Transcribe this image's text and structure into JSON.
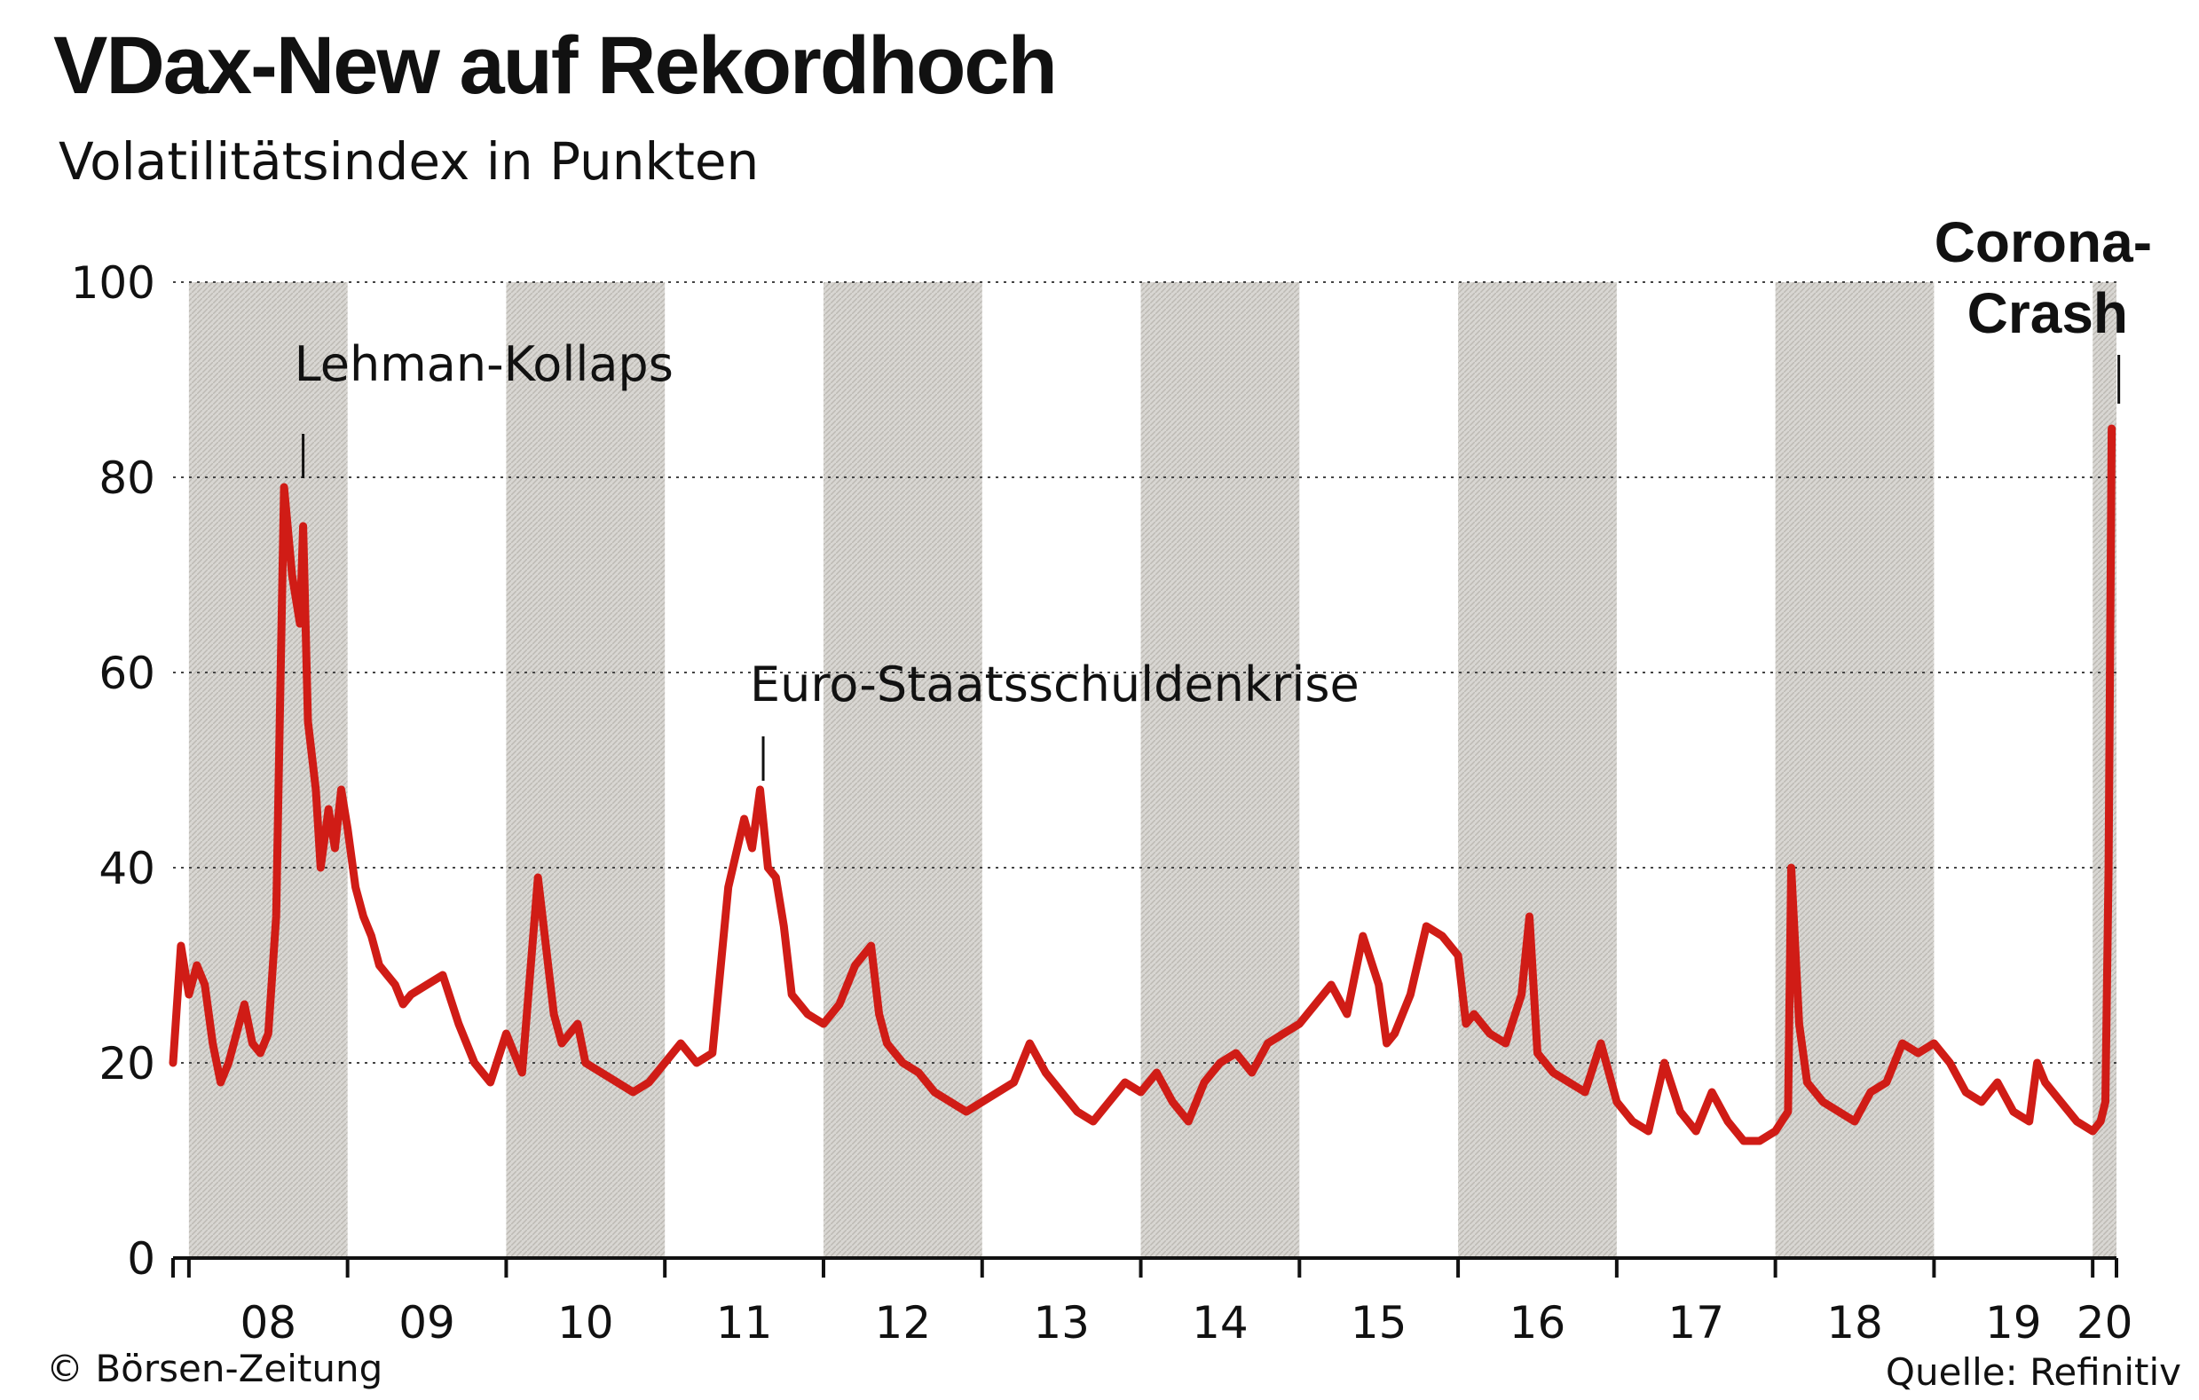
{
  "chart_data": {
    "type": "line",
    "title": "VDax-New auf Rekordhoch",
    "subtitle": "Volatilitätsindex in Punkten",
    "xlabel": "",
    "ylabel": "",
    "ylim": [
      0,
      100
    ],
    "yticks": [
      0,
      20,
      40,
      60,
      80,
      100
    ],
    "xlim": [
      2007.9,
      2020.15
    ],
    "year_labels": [
      "08",
      "09",
      "10",
      "11",
      "12",
      "13",
      "14",
      "15",
      "16",
      "17",
      "18",
      "19",
      "20"
    ],
    "grid": "horizontal dotted",
    "shaded_years": [
      "08",
      "10",
      "12",
      "14",
      "16",
      "18",
      "20"
    ],
    "series": [
      {
        "color": "#d01c16",
        "x": [
          2007.9,
          2007.95,
          2008.0,
          2008.05,
          2008.1,
          2008.15,
          2008.2,
          2008.25,
          2008.3,
          2008.35,
          2008.4,
          2008.45,
          2008.5,
          2008.55,
          2008.6,
          2008.65,
          2008.7,
          2008.72,
          2008.75,
          2008.8,
          2008.83,
          2008.88,
          2008.92,
          2008.96,
          2009.0,
          2009.05,
          2009.1,
          2009.15,
          2009.2,
          2009.25,
          2009.3,
          2009.35,
          2009.4,
          2009.5,
          2009.6,
          2009.7,
          2009.8,
          2009.9,
          2010.0,
          2010.1,
          2010.2,
          2010.3,
          2010.35,
          2010.4,
          2010.45,
          2010.5,
          2010.6,
          2010.7,
          2010.8,
          2010.9,
          2011.0,
          2011.1,
          2011.2,
          2011.3,
          2011.4,
          2011.5,
          2011.55,
          2011.6,
          2011.65,
          2011.7,
          2011.75,
          2011.8,
          2011.9,
          2012.0,
          2012.1,
          2012.2,
          2012.3,
          2012.35,
          2012.4,
          2012.5,
          2012.6,
          2012.7,
          2012.8,
          2012.9,
          2013.0,
          2013.1,
          2013.2,
          2013.3,
          2013.4,
          2013.5,
          2013.6,
          2013.7,
          2013.8,
          2013.9,
          2014.0,
          2014.1,
          2014.2,
          2014.3,
          2014.4,
          2014.5,
          2014.6,
          2014.7,
          2014.8,
          2014.9,
          2015.0,
          2015.1,
          2015.2,
          2015.3,
          2015.4,
          2015.5,
          2015.55,
          2015.6,
          2015.7,
          2015.8,
          2015.9,
          2016.0,
          2016.05,
          2016.1,
          2016.2,
          2016.3,
          2016.4,
          2016.45,
          2016.5,
          2016.6,
          2016.7,
          2016.8,
          2016.9,
          2017.0,
          2017.1,
          2017.2,
          2017.3,
          2017.4,
          2017.5,
          2017.6,
          2017.7,
          2017.8,
          2017.9,
          2018.0,
          2018.08,
          2018.1,
          2018.15,
          2018.2,
          2018.3,
          2018.4,
          2018.5,
          2018.6,
          2018.7,
          2018.8,
          2018.9,
          2019.0,
          2019.1,
          2019.2,
          2019.3,
          2019.4,
          2019.5,
          2019.6,
          2019.65,
          2019.7,
          2019.8,
          2019.9,
          2020.0,
          2020.05,
          2020.08,
          2020.1,
          2020.12
        ],
        "y": [
          20,
          32,
          27,
          30,
          28,
          22,
          18,
          20,
          23,
          26,
          22,
          21,
          23,
          35,
          79,
          70,
          65,
          75,
          55,
          48,
          40,
          46,
          42,
          48,
          44,
          38,
          35,
          33,
          30,
          29,
          28,
          26,
          27,
          28,
          29,
          24,
          20,
          18,
          23,
          19,
          39,
          25,
          22,
          23,
          24,
          20,
          19,
          18,
          17,
          18,
          20,
          22,
          20,
          21,
          38,
          45,
          42,
          48,
          40,
          39,
          34,
          27,
          25,
          24,
          26,
          30,
          32,
          25,
          22,
          20,
          19,
          17,
          16,
          15,
          16,
          17,
          18,
          22,
          19,
          17,
          15,
          14,
          16,
          18,
          17,
          19,
          16,
          14,
          18,
          20,
          21,
          19,
          22,
          23,
          24,
          26,
          28,
          25,
          33,
          28,
          22,
          23,
          27,
          34,
          33,
          31,
          24,
          25,
          23,
          22,
          27,
          35,
          21,
          19,
          18,
          17,
          22,
          16,
          14,
          13,
          20,
          15,
          13,
          17,
          14,
          12,
          12,
          13,
          15,
          40,
          24,
          18,
          16,
          15,
          14,
          17,
          18,
          22,
          21,
          22,
          20,
          17,
          16,
          18,
          15,
          14,
          20,
          18,
          16,
          14,
          13,
          14,
          16,
          40,
          85
        ]
      }
    ],
    "annotations": [
      {
        "text": "Lehman-Kollaps",
        "x": 2008.72,
        "y": 79
      },
      {
        "text": "Euro-Staatsschuldenkrise",
        "x": 2011.62,
        "y": 48
      },
      {
        "text": "Corona-",
        "x": 2020.12,
        "y": 85
      },
      {
        "text": "Crash",
        "x": 2020.12,
        "y": 85
      }
    ]
  },
  "footer": {
    "copyright": "© Börsen-Zeitung",
    "source": "Quelle: Refinitiv"
  }
}
